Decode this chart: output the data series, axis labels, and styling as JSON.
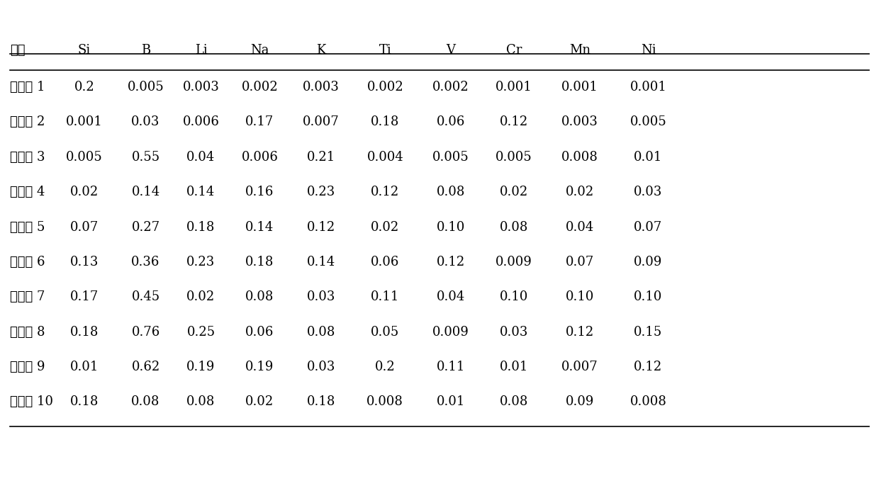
{
  "headers": [
    "组别",
    "Si",
    "B",
    "Li",
    "Na",
    "K",
    "Ti",
    "V",
    "Cr",
    "Mn",
    "Ni"
  ],
  "rows": [
    [
      "实施例 1",
      "0.2",
      "0.005",
      "0.003",
      "0.002",
      "0.003",
      "0.002",
      "0.002",
      "0.001",
      "0.001",
      "0.001"
    ],
    [
      "实施例 2",
      "0.001",
      "0.03",
      "0.006",
      "0.17",
      "0.007",
      "0.18",
      "0.06",
      "0.12",
      "0.003",
      "0.005"
    ],
    [
      "实施例 3",
      "0.005",
      "0.55",
      "0.04",
      "0.006",
      "0.21",
      "0.004",
      "0.005",
      "0.005",
      "0.008",
      "0.01"
    ],
    [
      "实施例 4",
      "0.02",
      "0.14",
      "0.14",
      "0.16",
      "0.23",
      "0.12",
      "0.08",
      "0.02",
      "0.02",
      "0.03"
    ],
    [
      "实施例 5",
      "0.07",
      "0.27",
      "0.18",
      "0.14",
      "0.12",
      "0.02",
      "0.10",
      "0.08",
      "0.04",
      "0.07"
    ],
    [
      "实施例 6",
      "0.13",
      "0.36",
      "0.23",
      "0.18",
      "0.14",
      "0.06",
      "0.12",
      "0.009",
      "0.07",
      "0.09"
    ],
    [
      "实施例 7",
      "0.17",
      "0.45",
      "0.02",
      "0.08",
      "0.03",
      "0.11",
      "0.04",
      "0.10",
      "0.10",
      "0.10"
    ],
    [
      "实施例 8",
      "0.18",
      "0.76",
      "0.25",
      "0.06",
      "0.08",
      "0.05",
      "0.009",
      "0.03",
      "0.12",
      "0.15"
    ],
    [
      "实施例 9",
      "0.01",
      "0.62",
      "0.19",
      "0.19",
      "0.03",
      "0.2",
      "0.11",
      "0.01",
      "0.007",
      "0.12"
    ],
    [
      "实施例 10",
      "0.18",
      "0.08",
      "0.08",
      "0.02",
      "0.18",
      "0.008",
      "0.01",
      "0.08",
      "0.09",
      "0.008"
    ]
  ],
  "background_color": "#ffffff",
  "text_color": "#000000",
  "header_line_color": "#000000",
  "font_size": 13,
  "header_font_size": 13
}
